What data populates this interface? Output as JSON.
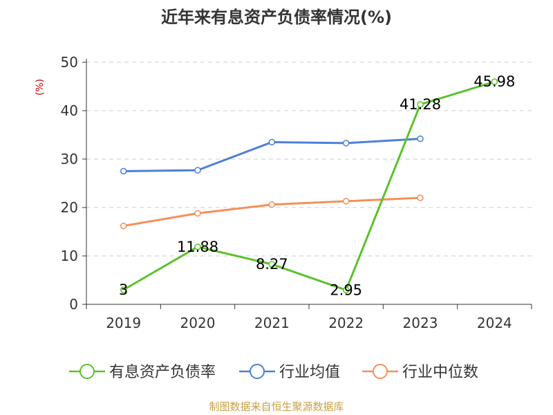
{
  "colors": {
    "axis": "#333333",
    "grid": "#cccccc",
    "unit": "#cc0000",
    "source": "#c8a046"
  },
  "chart_data": {
    "type": "line",
    "title": "近年来有息资产负债率情况(%)",
    "ylabel": "(%)",
    "xlabel": "",
    "categories": [
      "2019",
      "2020",
      "2021",
      "2022",
      "2023",
      "2024"
    ],
    "ylim": [
      0,
      50
    ],
    "yticks": [
      0,
      10,
      20,
      30,
      40,
      50
    ],
    "grid": true,
    "legend_position": "bottom",
    "series": [
      {
        "name": "有息资产负债率",
        "color": "#5cc12b",
        "values": [
          3,
          11.88,
          8.27,
          2.95,
          41.28,
          45.98
        ],
        "labels": [
          "3",
          "11.88",
          "8.27",
          "2.95",
          "41.28",
          "45.98"
        ]
      },
      {
        "name": "行业均值",
        "color": "#4e7fd8",
        "values": [
          27.5,
          27.7,
          33.5,
          33.3,
          34.2,
          null
        ]
      },
      {
        "name": "行业中位数",
        "color": "#f58f5a",
        "values": [
          16.2,
          18.8,
          20.6,
          21.3,
          22.0,
          null
        ]
      }
    ]
  },
  "source": "制图数据来自恒生聚源数据库"
}
